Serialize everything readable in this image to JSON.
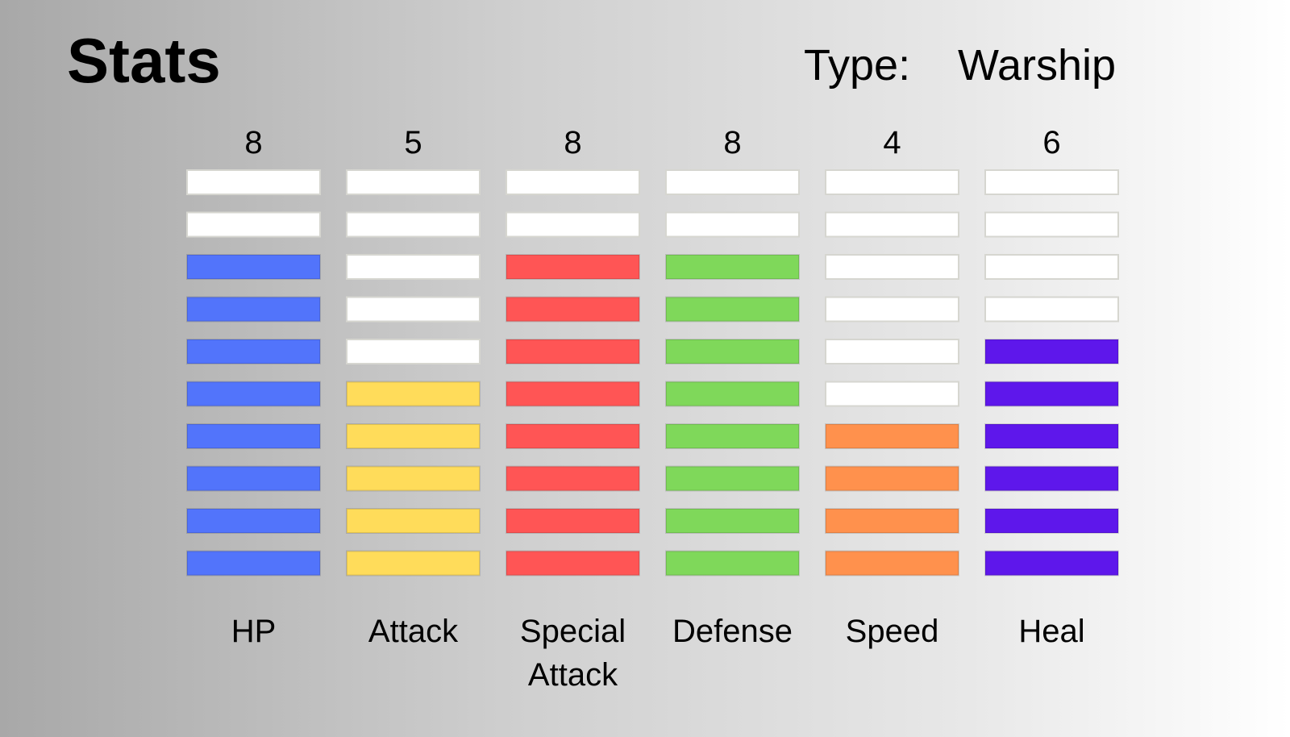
{
  "header": {
    "title": "Stats",
    "type_label": "Type:",
    "type_value": "Warship"
  },
  "chart_data": {
    "type": "bar",
    "max_segments": 10,
    "categories": [
      {
        "label": [
          "HP"
        ],
        "value": 8,
        "color": "#5274fb"
      },
      {
        "label": [
          "Attack"
        ],
        "value": 5,
        "color": "#ffdc5a"
      },
      {
        "label": [
          "Special",
          "Attack"
        ],
        "value": 8,
        "color": "#ff5555"
      },
      {
        "label": [
          "Defense"
        ],
        "value": 8,
        "color": "#7fd85a"
      },
      {
        "label": [
          "Speed"
        ],
        "value": 4,
        "color": "#ff914d"
      },
      {
        "label": [
          "Heal"
        ],
        "value": 6,
        "color": "#5e17eb"
      }
    ],
    "empty_color": "#ffffff"
  }
}
